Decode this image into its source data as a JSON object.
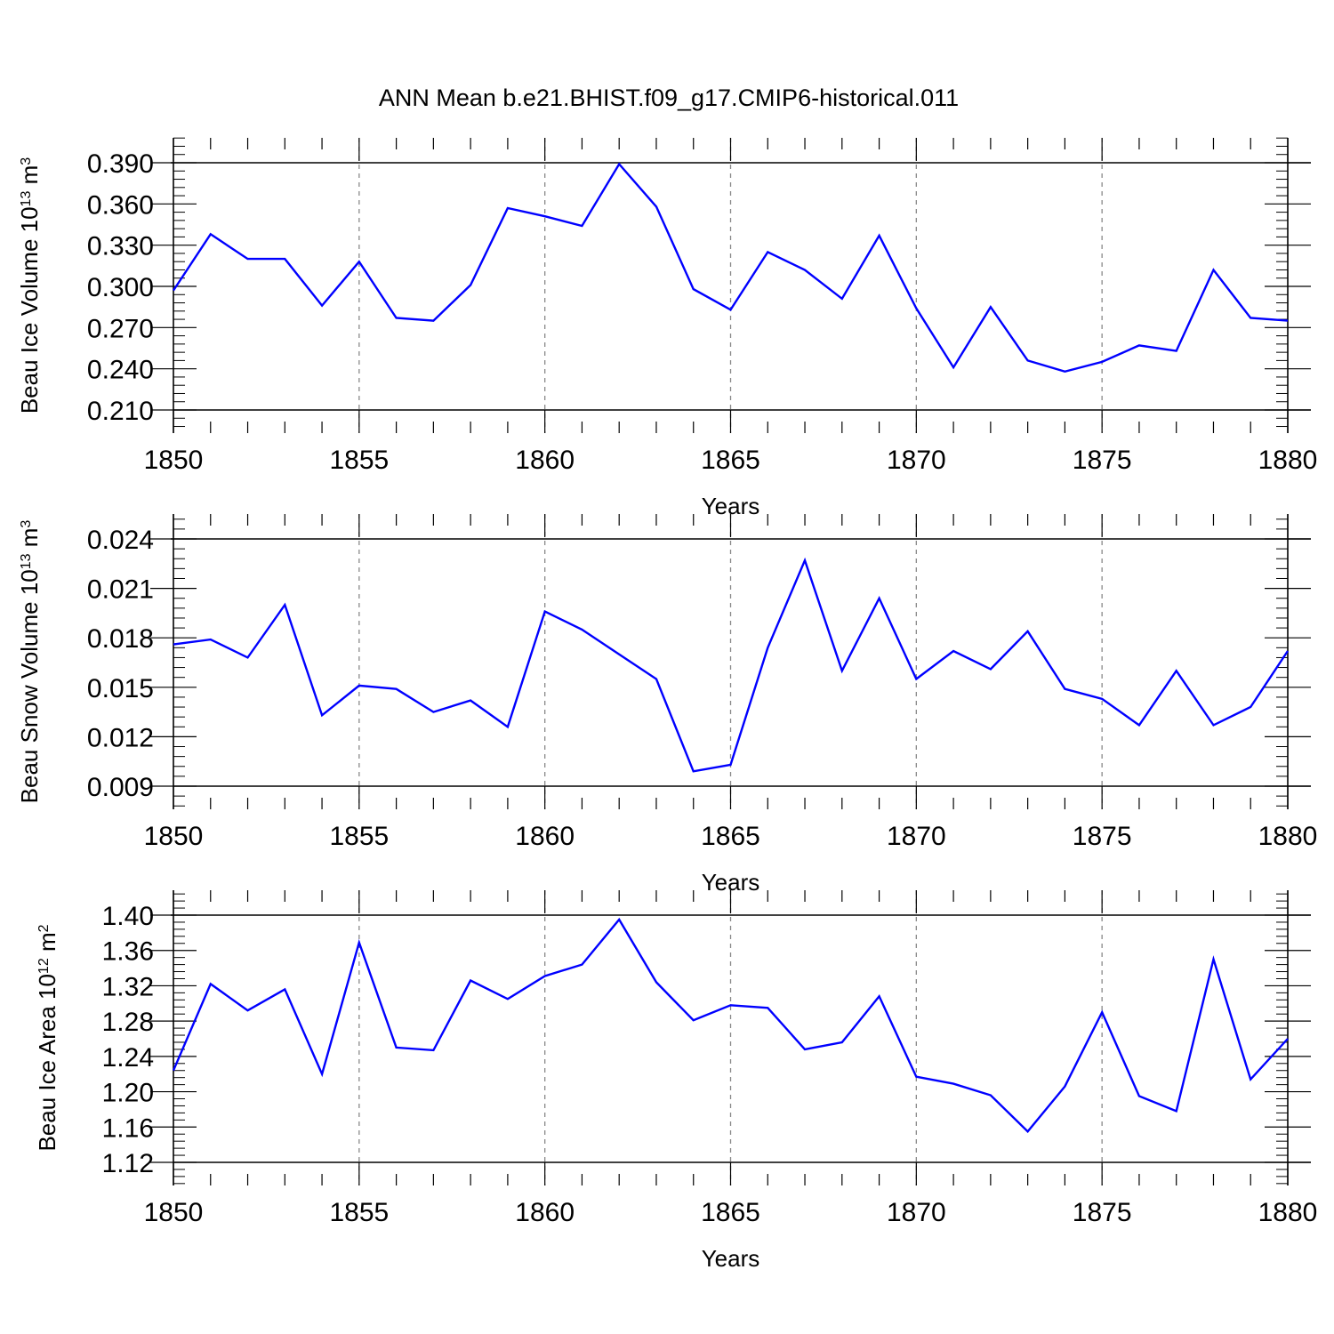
{
  "title": "ANN Mean b.e21.BHIST.f09_g17.CMIP6-historical.011",
  "line_color": "#0000ff",
  "frame_color": "#000000",
  "grid_color": "#888888",
  "chart_data": [
    {
      "type": "line",
      "ylabel_prefix": "Beau Ice Volume 10",
      "ylabel_exp": "13",
      "ylabel_unit": " m",
      "ylabel_unit_exp": "3",
      "xlabel": "Years",
      "xlim": [
        1850,
        1880
      ],
      "ylim": [
        0.21,
        0.39
      ],
      "y_ticks": [
        "0.390",
        "0.360",
        "0.330",
        "0.300",
        "0.270",
        "0.240",
        "0.210"
      ],
      "x_ticks": [
        "1850",
        "1855",
        "1860",
        "1865",
        "1870",
        "1875",
        "1880"
      ],
      "x": [
        1850,
        1851,
        1852,
        1853,
        1854,
        1855,
        1856,
        1857,
        1858,
        1859,
        1860,
        1861,
        1862,
        1863,
        1864,
        1865,
        1866,
        1867,
        1868,
        1869,
        1870,
        1871,
        1872,
        1873,
        1874,
        1875,
        1876,
        1877,
        1878,
        1879,
        1880
      ],
      "values": [
        0.297,
        0.338,
        0.32,
        0.32,
        0.286,
        0.318,
        0.277,
        0.275,
        0.301,
        0.357,
        0.351,
        0.344,
        0.389,
        0.358,
        0.298,
        0.283,
        0.325,
        0.312,
        0.291,
        0.337,
        0.284,
        0.241,
        0.285,
        0.246,
        0.238,
        0.245,
        0.257,
        0.253,
        0.312,
        0.277,
        0.275
      ]
    },
    {
      "type": "line",
      "ylabel_prefix": "Beau Snow Volume 10",
      "ylabel_exp": "13",
      "ylabel_unit": " m",
      "ylabel_unit_exp": "3",
      "xlabel": "Years",
      "xlim": [
        1850,
        1880
      ],
      "ylim": [
        0.009,
        0.024
      ],
      "y_ticks": [
        "0.024",
        "0.021",
        "0.018",
        "0.015",
        "0.012",
        "0.009"
      ],
      "x_ticks": [
        "1850",
        "1855",
        "1860",
        "1865",
        "1870",
        "1875",
        "1880"
      ],
      "x": [
        1850,
        1851,
        1852,
        1853,
        1854,
        1855,
        1856,
        1857,
        1858,
        1859,
        1860,
        1861,
        1862,
        1863,
        1864,
        1865,
        1866,
        1867,
        1868,
        1869,
        1870,
        1871,
        1872,
        1873,
        1874,
        1875,
        1876,
        1877,
        1878,
        1879,
        1880
      ],
      "values": [
        0.0176,
        0.0179,
        0.0168,
        0.02,
        0.0133,
        0.0151,
        0.0149,
        0.0135,
        0.0142,
        0.0126,
        0.0196,
        0.0185,
        0.017,
        0.0155,
        0.0099,
        0.0103,
        0.0174,
        0.0227,
        0.016,
        0.0204,
        0.0155,
        0.0172,
        0.0161,
        0.0184,
        0.0149,
        0.0143,
        0.0127,
        0.016,
        0.0127,
        0.0138,
        0.0172
      ]
    },
    {
      "type": "line",
      "ylabel_prefix": "Beau Ice Area 10",
      "ylabel_exp": "12",
      "ylabel_unit": " m",
      "ylabel_unit_exp": "2",
      "xlabel": "Years",
      "xlim": [
        1850,
        1880
      ],
      "ylim": [
        1.12,
        1.4
      ],
      "y_ticks": [
        "1.40",
        "1.36",
        "1.32",
        "1.28",
        "1.24",
        "1.20",
        "1.16",
        "1.12"
      ],
      "x_ticks": [
        "1850",
        "1855",
        "1860",
        "1865",
        "1870",
        "1875",
        "1880"
      ],
      "x": [
        1850,
        1851,
        1852,
        1853,
        1854,
        1855,
        1856,
        1857,
        1858,
        1859,
        1860,
        1861,
        1862,
        1863,
        1864,
        1865,
        1866,
        1867,
        1868,
        1869,
        1870,
        1871,
        1872,
        1873,
        1874,
        1875,
        1876,
        1877,
        1878,
        1879,
        1880
      ],
      "values": [
        1.224,
        1.322,
        1.292,
        1.316,
        1.22,
        1.369,
        1.25,
        1.247,
        1.326,
        1.305,
        1.331,
        1.344,
        1.395,
        1.324,
        1.281,
        1.298,
        1.295,
        1.248,
        1.256,
        1.308,
        1.217,
        1.209,
        1.196,
        1.155,
        1.206,
        1.29,
        1.195,
        1.178,
        1.35,
        1.214,
        1.26
      ]
    }
  ]
}
